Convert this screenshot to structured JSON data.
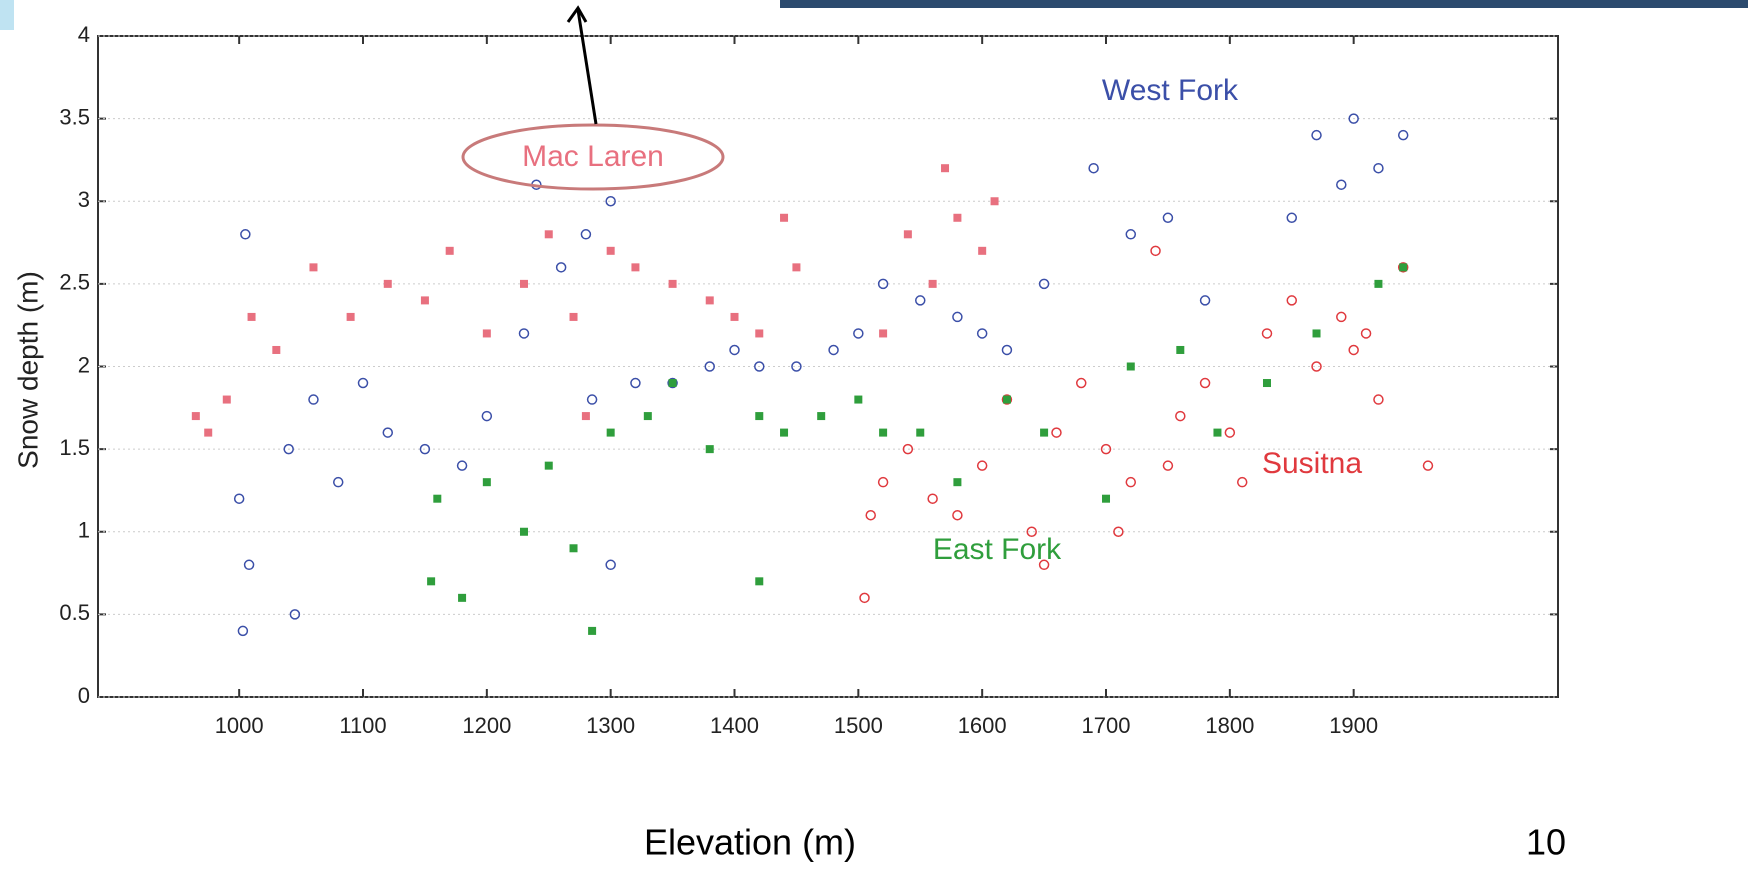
{
  "chart_data": {
    "type": "scatter",
    "xlabel": "Elevation (m)",
    "ylabel": "Snow depth (m)",
    "xlim": [
      886,
      2065
    ],
    "ylim": [
      0,
      4
    ],
    "xticks": [
      1000,
      1100,
      1200,
      1300,
      1400,
      1500,
      1600,
      1700,
      1800,
      1900
    ],
    "yticks": [
      0,
      0.5,
      1,
      1.5,
      2,
      2.5,
      3,
      3.5,
      4
    ],
    "grid": true,
    "series": [
      {
        "name": "West Fork",
        "color": "#3b4fa8",
        "marker": "circle-open",
        "x": [
          1000,
          1003,
          1005,
          1008,
          1040,
          1045,
          1060,
          1080,
          1100,
          1120,
          1150,
          1180,
          1200,
          1230,
          1240,
          1260,
          1280,
          1285,
          1300,
          1300,
          1320,
          1350,
          1380,
          1400,
          1420,
          1450,
          1480,
          1500,
          1520,
          1550,
          1580,
          1600,
          1620,
          1650,
          1690,
          1720,
          1750,
          1780,
          1850,
          1870,
          1890,
          1900,
          1920,
          1940
        ],
        "values": [
          1.2,
          0.4,
          2.8,
          0.8,
          1.5,
          0.5,
          1.8,
          1.3,
          1.9,
          1.6,
          1.5,
          1.4,
          1.7,
          2.2,
          3.1,
          2.6,
          2.8,
          1.8,
          3.0,
          0.8,
          1.9,
          1.9,
          2.0,
          2.1,
          2.0,
          2.0,
          2.1,
          2.2,
          2.5,
          2.4,
          2.3,
          2.2,
          2.1,
          2.5,
          3.2,
          2.8,
          2.9,
          2.4,
          2.9,
          3.4,
          3.1,
          3.5,
          3.2,
          3.4
        ]
      },
      {
        "name": "Mac Laren",
        "color": "#e8707f",
        "marker": "square",
        "x": [
          965,
          975,
          990,
          1010,
          1030,
          1060,
          1090,
          1120,
          1150,
          1170,
          1200,
          1230,
          1250,
          1270,
          1280,
          1300,
          1320,
          1350,
          1380,
          1400,
          1420,
          1440,
          1450,
          1540,
          1560,
          1570,
          1580,
          1600,
          1610,
          1520
        ],
        "values": [
          1.7,
          1.6,
          1.8,
          2.3,
          2.1,
          2.6,
          2.3,
          2.5,
          2.4,
          2.7,
          2.2,
          2.5,
          2.8,
          2.3,
          1.7,
          2.7,
          2.6,
          2.5,
          2.4,
          2.3,
          2.2,
          2.9,
          2.6,
          2.8,
          2.5,
          3.2,
          2.9,
          2.7,
          3.0,
          2.2
        ]
      },
      {
        "name": "Susitna",
        "color": "#e0393e",
        "marker": "circle-open",
        "x": [
          1505,
          1510,
          1520,
          1540,
          1560,
          1580,
          1600,
          1620,
          1640,
          1660,
          1680,
          1700,
          1710,
          1720,
          1740,
          1760,
          1780,
          1800,
          1810,
          1830,
          1850,
          1870,
          1890,
          1910,
          1920,
          1940,
          1960,
          1650,
          1750,
          1900
        ],
        "values": [
          0.6,
          1.1,
          1.3,
          1.5,
          1.2,
          1.1,
          1.4,
          1.8,
          1.0,
          1.6,
          1.9,
          1.5,
          1.0,
          1.3,
          2.7,
          1.7,
          1.9,
          1.6,
          1.3,
          2.2,
          2.4,
          2.0,
          2.3,
          2.2,
          1.8,
          2.6,
          1.4,
          0.8,
          1.4,
          2.1
        ]
      },
      {
        "name": "East Fork",
        "color": "#2f9e3c",
        "marker": "square",
        "x": [
          1155,
          1160,
          1180,
          1200,
          1230,
          1250,
          1270,
          1285,
          1300,
          1330,
          1350,
          1380,
          1420,
          1420,
          1440,
          1470,
          1500,
          1520,
          1550,
          1580,
          1620,
          1650,
          1700,
          1720,
          1760,
          1790,
          1830,
          1870,
          1920,
          1940
        ],
        "values": [
          0.7,
          1.2,
          0.6,
          1.3,
          1.0,
          1.4,
          0.9,
          0.4,
          1.6,
          1.7,
          1.9,
          1.5,
          0.7,
          1.7,
          1.6,
          1.7,
          1.8,
          1.6,
          1.6,
          1.3,
          1.8,
          1.6,
          1.2,
          2.0,
          2.1,
          1.6,
          1.9,
          2.2,
          2.5,
          2.6
        ]
      }
    ]
  },
  "page_number": 10
}
